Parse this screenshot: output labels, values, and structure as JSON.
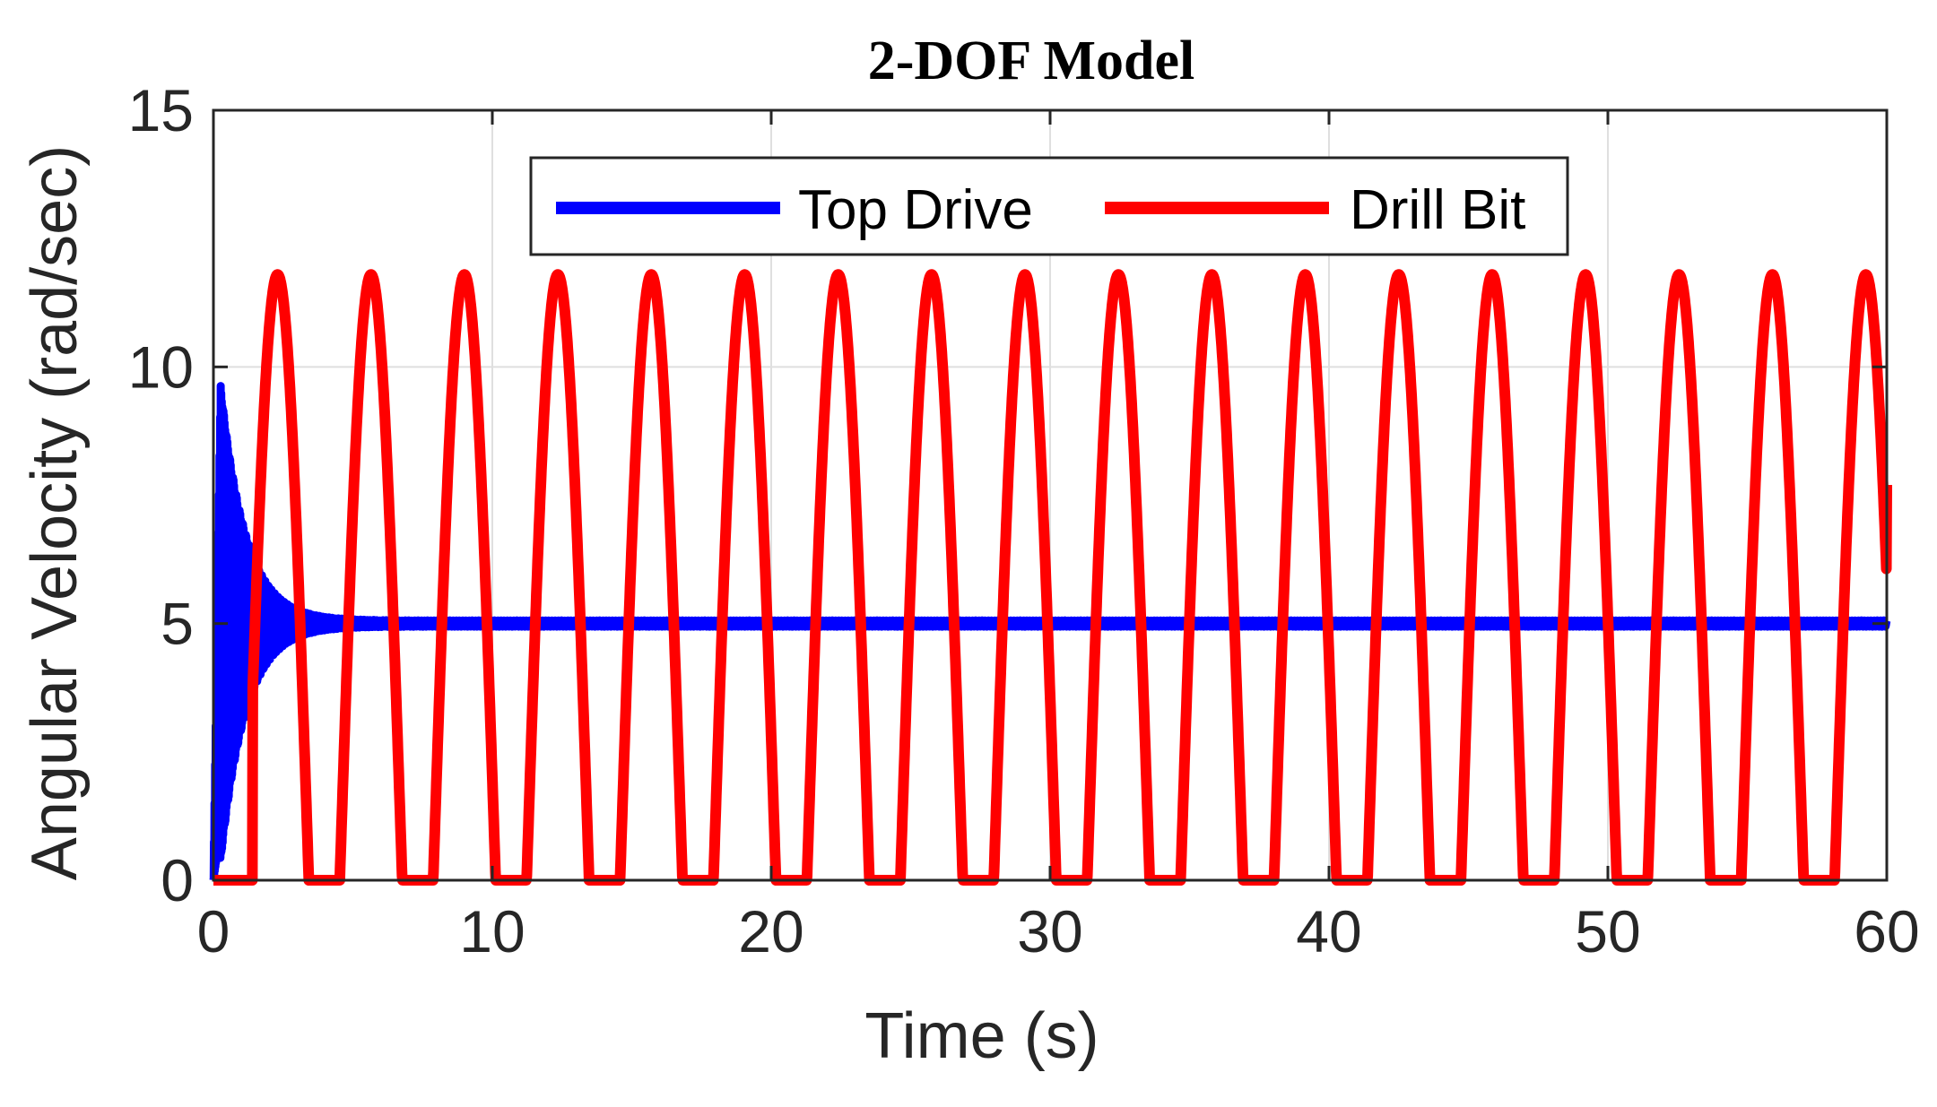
{
  "chart_data": {
    "type": "line",
    "title": "2-DOF Model",
    "xlabel": "Time (s)",
    "ylabel": "Angular Velocity (rad/sec)",
    "xlim": [
      0,
      60
    ],
    "ylim": [
      0,
      15
    ],
    "xticks": [
      0,
      10,
      20,
      30,
      40,
      50,
      60
    ],
    "yticks": [
      0,
      5,
      10,
      15
    ],
    "grid": true,
    "legend_position": "top-center",
    "series": [
      {
        "name": "Top Drive",
        "color": "#0000ff",
        "description_values": {
          "initial": 0,
          "peak_time": 0.25,
          "peak_value": 9.4,
          "settle_time": 3.5,
          "steady_state": 5.0
        }
      },
      {
        "name": "Drill Bit",
        "color": "#ff0000",
        "stick_start": 1.4,
        "period": 3.34,
        "peak_value": 11.8,
        "stick_value": 0,
        "peak_times": [
          2.3,
          5.65,
          9.0,
          12.35,
          15.7,
          19.05,
          22.4,
          25.75,
          29.1,
          32.45,
          35.8,
          39.15,
          42.5,
          45.85,
          49.2,
          52.55,
          55.9,
          59.25
        ],
        "end_value": 7.7
      }
    ]
  }
}
